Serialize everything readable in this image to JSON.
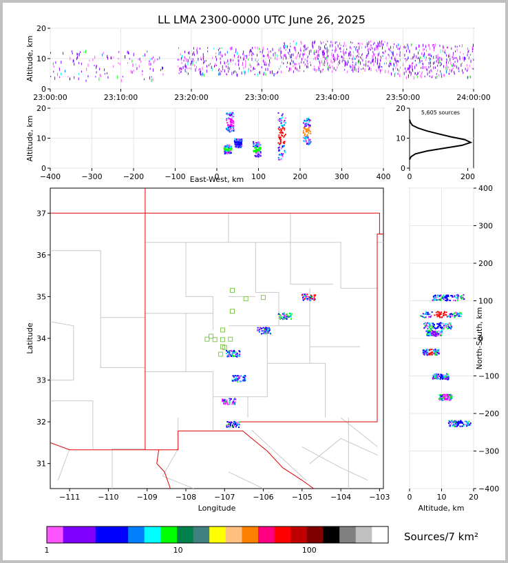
{
  "title": "LL LMA 2300-0000 UTC June 26, 2025",
  "colors": {
    "frame": "#c0c0c0",
    "border_red": "#e00000",
    "county": "#c8c8c8",
    "grid": "#e6e6e6",
    "station": "#7ec84a"
  },
  "colorbar": {
    "label": "Sources/7 km²",
    "ticks": [
      "1",
      "10",
      "100"
    ],
    "tick_values": [
      1,
      10,
      100
    ],
    "scale": "log",
    "range": [
      1,
      400
    ],
    "colors": [
      "#ff55ff",
      "#8000ff",
      "#8000ff",
      "#0000ff",
      "#0000ff",
      "#0080ff",
      "#00ffff",
      "#00ff00",
      "#00804a",
      "#408080",
      "#ffff00",
      "#ffc080",
      "#ff8000",
      "#ff0080",
      "#ff0000",
      "#c00000",
      "#800000",
      "#000000",
      "#808080",
      "#c0c0c0",
      "#ffffff"
    ]
  },
  "chart_data": [
    {
      "id": "time_height",
      "type": "scatter",
      "ylabel": "Altitude, km",
      "xlabel": "",
      "ylim": [
        0,
        20
      ],
      "yticks": [
        "0",
        "10",
        "20"
      ],
      "xticks": [
        "23:00:00",
        "23:10:00",
        "23:20:00",
        "23:30:00",
        "23:40:00",
        "23:50:00",
        "24:00:00"
      ],
      "xlim_minutes": [
        0,
        60
      ],
      "activity": [
        {
          "t0": 0,
          "t1": 16,
          "alt_min": 3,
          "alt_max": 13,
          "density": 0.25
        },
        {
          "t0": 18,
          "t1": 33,
          "alt_min": 5,
          "alt_max": 14,
          "density": 0.6
        },
        {
          "t0": 33,
          "t1": 48,
          "alt_min": 6,
          "alt_max": 16,
          "density": 0.95
        },
        {
          "t0": 48,
          "t1": 60,
          "alt_min": 4,
          "alt_max": 15,
          "density": 0.85
        }
      ]
    },
    {
      "id": "ew_altitude",
      "type": "scatter",
      "ylabel": "Altitude, km",
      "xlabel": "East-West, km",
      "xlim": [
        -400,
        400
      ],
      "ylim": [
        0,
        20
      ],
      "xticks": [
        "−400",
        "−300",
        "−200",
        "−100",
        "0",
        "100",
        "200",
        "300",
        "400"
      ],
      "yticks": [
        "0",
        "10",
        "20"
      ],
      "clusters": [
        {
          "x": 30,
          "alt_min": 12,
          "alt_max": 19,
          "peak": "magenta"
        },
        {
          "x": 25,
          "alt_min": 5,
          "alt_max": 8,
          "peak": "green"
        },
        {
          "x": 50,
          "alt_min": 7,
          "alt_max": 10,
          "peak": "blue"
        },
        {
          "x": 95,
          "alt_min": 4,
          "alt_max": 9,
          "peak": "green"
        },
        {
          "x": 155,
          "alt_min": 3,
          "alt_max": 19,
          "peak": "red"
        },
        {
          "x": 215,
          "alt_min": 8,
          "alt_max": 17,
          "peak": "orange"
        }
      ]
    },
    {
      "id": "altitude_histogram",
      "type": "line",
      "annotation": "5,605 sources",
      "xlim": [
        0,
        220
      ],
      "ylim": [
        0,
        21
      ],
      "xticks": [
        "0",
        "200"
      ],
      "yticks": [
        "0",
        "10",
        "20"
      ],
      "x": [
        0,
        5,
        20,
        60,
        120,
        180,
        210,
        190,
        140,
        100,
        60,
        30,
        10,
        3,
        0
      ],
      "y": [
        3,
        4,
        5,
        6,
        7,
        8,
        9,
        10,
        11,
        12,
        13,
        14,
        15,
        16,
        17
      ]
    },
    {
      "id": "plan_view",
      "type": "scatter",
      "xlabel": "Longitude",
      "ylabel": "Latitude",
      "xlim": [
        -111.5,
        -102.9
      ],
      "ylim": [
        30.4,
        37.6
      ],
      "xticks": [
        "−111",
        "−110",
        "−109",
        "−108",
        "−107",
        "−106",
        "−105",
        "−104",
        "−103"
      ],
      "yticks": [
        "31",
        "32",
        "33",
        "34",
        "35",
        "36",
        "37"
      ],
      "clusters": [
        {
          "lon": -104.85,
          "lat": 35.0,
          "peak": "red"
        },
        {
          "lon": -105.45,
          "lat": 34.55,
          "peak": "green"
        },
        {
          "lon": -106.0,
          "lat": 34.2,
          "peak": "blue"
        },
        {
          "lon": -106.8,
          "lat": 33.65,
          "peak": "blue"
        },
        {
          "lon": -106.65,
          "lat": 33.05,
          "peak": "blue"
        },
        {
          "lon": -106.8,
          "lat": 31.95,
          "peak": "blue"
        },
        {
          "lon": -106.9,
          "lat": 32.5,
          "peak": "magenta"
        }
      ],
      "stations": [
        {
          "lon": -106.8,
          "lat": 35.15
        },
        {
          "lon": -106.45,
          "lat": 34.95
        },
        {
          "lon": -106.0,
          "lat": 34.98
        },
        {
          "lon": -106.8,
          "lat": 34.65
        },
        {
          "lon": -107.05,
          "lat": 34.2
        },
        {
          "lon": -107.35,
          "lat": 34.05
        },
        {
          "lon": -107.45,
          "lat": 33.98
        },
        {
          "lon": -107.25,
          "lat": 33.97
        },
        {
          "lon": -107.05,
          "lat": 33.97
        },
        {
          "lon": -106.85,
          "lat": 33.98
        },
        {
          "lon": -107.05,
          "lat": 33.8
        },
        {
          "lon": -107.0,
          "lat": 33.78
        },
        {
          "lon": -107.1,
          "lat": 33.62
        }
      ]
    },
    {
      "id": "ns_altitude",
      "type": "scatter",
      "xlabel": "Altitude, km",
      "ylabel": "North-South, km",
      "xlim": [
        0,
        20
      ],
      "ylim": [
        -400,
        400
      ],
      "xticks": [
        "0",
        "10",
        "20"
      ],
      "yticks": [
        "−400",
        "−300",
        "−200",
        "−100",
        "0",
        "100",
        "200",
        "300",
        "400"
      ],
      "clusters": [
        {
          "y": 110,
          "alt_min": 7,
          "alt_max": 17,
          "peak": "blue"
        },
        {
          "y": 65,
          "alt_min": 3,
          "alt_max": 16,
          "peak": "red"
        },
        {
          "y": 35,
          "alt_min": 4,
          "alt_max": 13,
          "peak": "blue"
        },
        {
          "y": 15,
          "alt_min": 5,
          "alt_max": 10,
          "peak": "purple"
        },
        {
          "y": -35,
          "alt_min": 4,
          "alt_max": 9,
          "peak": "red"
        },
        {
          "y": -100,
          "alt_min": 7,
          "alt_max": 12,
          "peak": "blue"
        },
        {
          "y": -155,
          "alt_min": 9,
          "alt_max": 13,
          "peak": "magenta"
        },
        {
          "y": -225,
          "alt_min": 12,
          "alt_max": 19,
          "peak": "blue"
        }
      ]
    }
  ]
}
